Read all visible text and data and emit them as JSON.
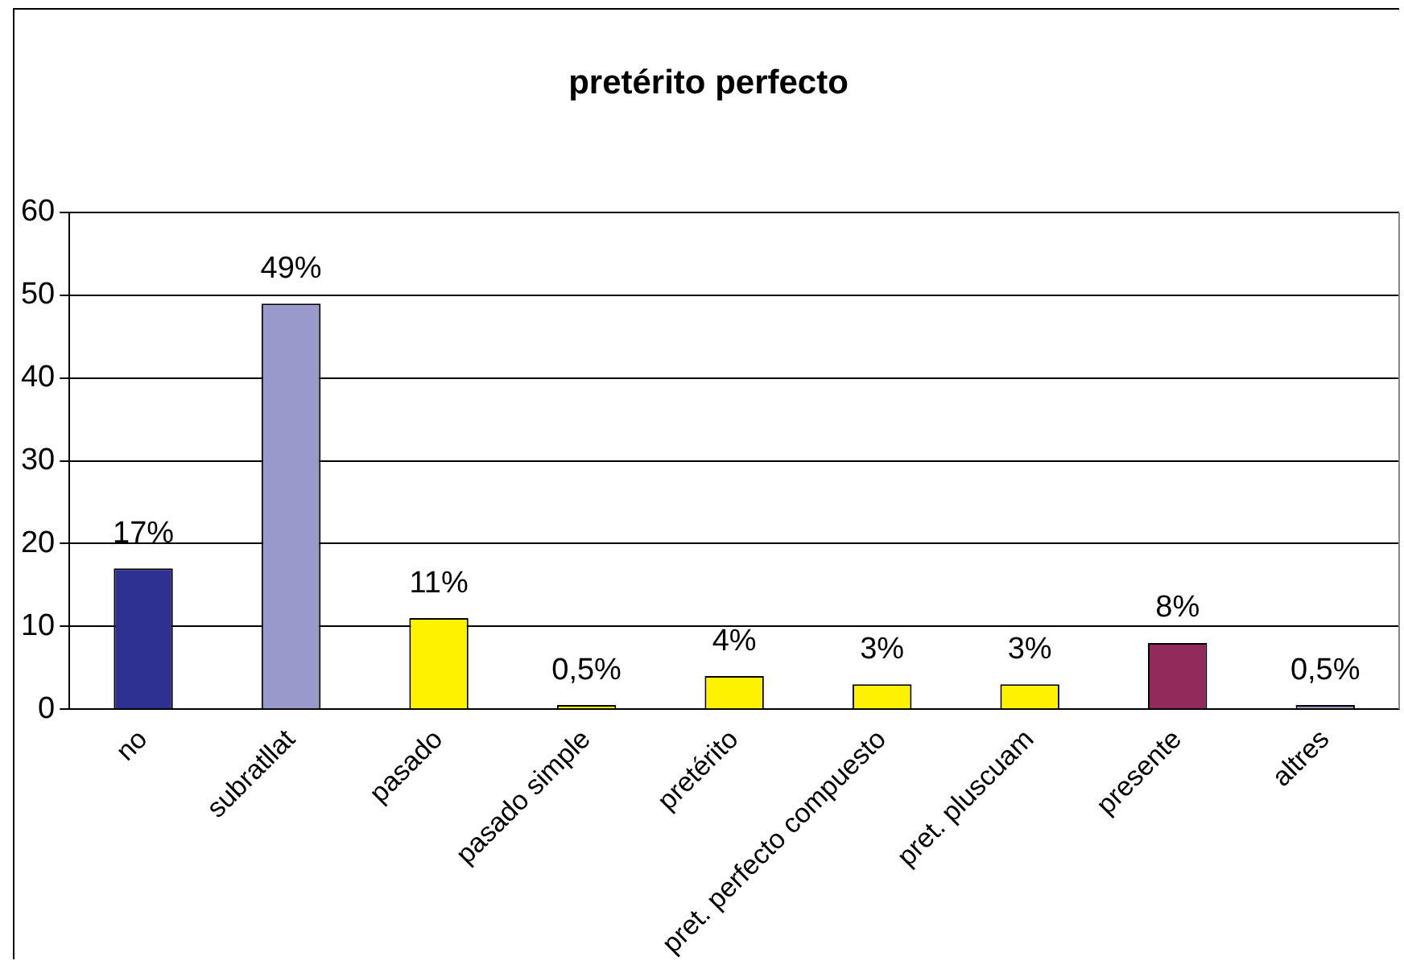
{
  "chart_data": {
    "type": "bar",
    "title": "pretérito perfecto",
    "categories": [
      "no",
      "subratllat",
      "pasado",
      "pasado simple",
      "pretérito",
      "pret. perfecto compuesto",
      "pret. pluscuam",
      "presente",
      "altres"
    ],
    "values": [
      17,
      49,
      11,
      0.5,
      4,
      3,
      3,
      8,
      0.5
    ],
    "colors": [
      "#2e3192",
      "#9999cc",
      "#fff200",
      "#fff200",
      "#fff200",
      "#fff200",
      "#fff200",
      "#922b5c",
      "#9999cc"
    ],
    "value_labels": [
      "17%",
      "49%",
      "11%",
      "0,5%",
      "4%",
      "3%",
      "3%",
      "8%",
      "0,5%"
    ],
    "ylim": [
      0,
      60
    ],
    "yticks": [
      0,
      10,
      20,
      30,
      40,
      50,
      60
    ],
    "grid": "y"
  }
}
